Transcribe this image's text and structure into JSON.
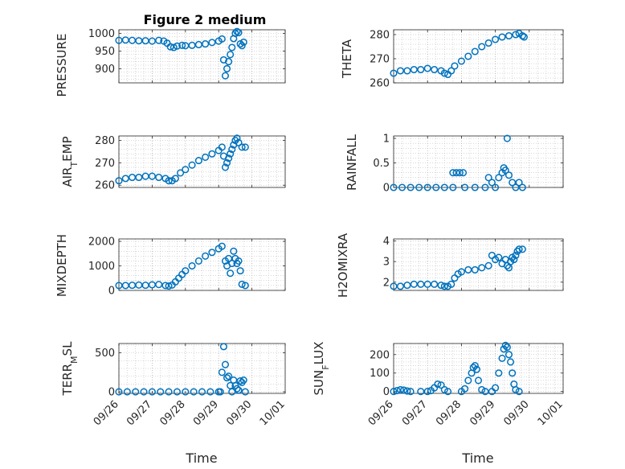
{
  "figure": {
    "title": "Figure 2 medium",
    "xlabel": "Time",
    "x_tick_labels": [
      "09/26",
      "09/27",
      "09/28",
      "09/29",
      "09/30",
      "10/01"
    ],
    "marker_color": "#0072BD",
    "axis_color": "#262626",
    "grid_color": "#b0b0b0"
  },
  "chart_data": [
    {
      "type": "scatter",
      "ylabel": "PRESSURE",
      "ylim": [
        860,
        1010
      ],
      "yticks": [
        900,
        950,
        1000
      ],
      "ytick_labels": [
        "900",
        "950",
        "1000"
      ],
      "xlim": [
        0,
        5
      ],
      "grid": true,
      "points": [
        [
          0,
          980
        ],
        [
          0.2,
          981
        ],
        [
          0.4,
          980
        ],
        [
          0.6,
          979
        ],
        [
          0.8,
          979
        ],
        [
          1.0,
          978
        ],
        [
          1.2,
          980
        ],
        [
          1.35,
          978
        ],
        [
          1.45,
          972
        ],
        [
          1.55,
          962
        ],
        [
          1.65,
          960
        ],
        [
          1.75,
          964
        ],
        [
          1.9,
          966
        ],
        [
          2.0,
          965
        ],
        [
          2.2,
          966
        ],
        [
          2.4,
          968
        ],
        [
          2.6,
          970
        ],
        [
          2.8,
          974
        ],
        [
          3.0,
          978
        ],
        [
          3.1,
          984
        ],
        [
          3.15,
          925
        ],
        [
          3.2,
          880
        ],
        [
          3.25,
          900
        ],
        [
          3.3,
          920
        ],
        [
          3.35,
          940
        ],
        [
          3.4,
          960
        ],
        [
          3.45,
          985
        ],
        [
          3.5,
          1000
        ],
        [
          3.55,
          1005
        ],
        [
          3.6,
          1002
        ],
        [
          3.65,
          970
        ],
        [
          3.7,
          965
        ],
        [
          3.75,
          975
        ]
      ]
    },
    {
      "type": "scatter",
      "ylabel": "THETA",
      "ylim": [
        260,
        282
      ],
      "yticks": [
        260,
        270,
        280
      ],
      "ytick_labels": [
        "260",
        "270",
        "280"
      ],
      "xlim": [
        0,
        5
      ],
      "grid": true,
      "points": [
        [
          0,
          264
        ],
        [
          0.2,
          265
        ],
        [
          0.4,
          265
        ],
        [
          0.6,
          265.5
        ],
        [
          0.8,
          265.5
        ],
        [
          1.0,
          266
        ],
        [
          1.2,
          265.5
        ],
        [
          1.4,
          265
        ],
        [
          1.5,
          264
        ],
        [
          1.6,
          263.5
        ],
        [
          1.7,
          265
        ],
        [
          1.8,
          267
        ],
        [
          2.0,
          269
        ],
        [
          2.2,
          271
        ],
        [
          2.4,
          273
        ],
        [
          2.6,
          275
        ],
        [
          2.8,
          276.5
        ],
        [
          3.0,
          278
        ],
        [
          3.2,
          279
        ],
        [
          3.4,
          279.5
        ],
        [
          3.6,
          280
        ],
        [
          3.7,
          280.5
        ],
        [
          3.8,
          279.5
        ],
        [
          3.85,
          279
        ]
      ]
    },
    {
      "type": "scatter",
      "ylabel": "AIR_TEMP",
      "ylim": [
        259,
        282
      ],
      "yticks": [
        260,
        270,
        280
      ],
      "ytick_labels": [
        "260",
        "270",
        "280"
      ],
      "xlim": [
        0,
        5
      ],
      "grid": true,
      "points": [
        [
          0,
          262
        ],
        [
          0.2,
          263
        ],
        [
          0.4,
          263.5
        ],
        [
          0.6,
          263.5
        ],
        [
          0.8,
          264
        ],
        [
          1.0,
          264
        ],
        [
          1.2,
          263.5
        ],
        [
          1.4,
          263
        ],
        [
          1.5,
          262
        ],
        [
          1.6,
          262
        ],
        [
          1.7,
          263
        ],
        [
          1.85,
          265.5
        ],
        [
          2.0,
          267
        ],
        [
          2.2,
          269
        ],
        [
          2.4,
          271
        ],
        [
          2.6,
          272.5
        ],
        [
          2.8,
          274
        ],
        [
          3.0,
          275.5
        ],
        [
          3.1,
          277
        ],
        [
          3.15,
          273
        ],
        [
          3.2,
          268
        ],
        [
          3.25,
          270
        ],
        [
          3.3,
          272
        ],
        [
          3.35,
          274
        ],
        [
          3.4,
          276
        ],
        [
          3.45,
          278
        ],
        [
          3.5,
          280
        ],
        [
          3.55,
          281
        ],
        [
          3.6,
          279
        ],
        [
          3.7,
          277
        ],
        [
          3.8,
          277
        ]
      ]
    },
    {
      "type": "scatter",
      "ylabel": "RAINFALL",
      "ylim": [
        0,
        1.05
      ],
      "yticks": [
        0,
        0.5,
        1
      ],
      "ytick_labels": [
        "0",
        "0.5",
        "1"
      ],
      "xlim": [
        0,
        5
      ],
      "grid": true,
      "points": [
        [
          0,
          0
        ],
        [
          0.25,
          0
        ],
        [
          0.5,
          0
        ],
        [
          0.75,
          0
        ],
        [
          1.0,
          0
        ],
        [
          1.25,
          0
        ],
        [
          1.5,
          0
        ],
        [
          1.75,
          0
        ],
        [
          1.75,
          0.3
        ],
        [
          1.85,
          0.3
        ],
        [
          1.95,
          0.3
        ],
        [
          2.05,
          0.3
        ],
        [
          2.1,
          0
        ],
        [
          2.4,
          0
        ],
        [
          2.7,
          0
        ],
        [
          2.8,
          0.2
        ],
        [
          2.9,
          0.1
        ],
        [
          3.0,
          0
        ],
        [
          3.1,
          0.2
        ],
        [
          3.2,
          0.3
        ],
        [
          3.25,
          0.4
        ],
        [
          3.3,
          0.35
        ],
        [
          3.35,
          1.0
        ],
        [
          3.4,
          0.25
        ],
        [
          3.5,
          0.1
        ],
        [
          3.6,
          0
        ],
        [
          3.7,
          0.1
        ],
        [
          3.8,
          0
        ]
      ]
    },
    {
      "type": "scatter",
      "ylabel": "MIXDEPTH",
      "ylim": [
        0,
        2100
      ],
      "yticks": [
        0,
        1000,
        2000
      ],
      "ytick_labels": [
        "0",
        "1000",
        "2000"
      ],
      "xlim": [
        0,
        5
      ],
      "grid": true,
      "points": [
        [
          0,
          200
        ],
        [
          0.2,
          200
        ],
        [
          0.4,
          210
        ],
        [
          0.6,
          220
        ],
        [
          0.8,
          210
        ],
        [
          1.0,
          230
        ],
        [
          1.2,
          240
        ],
        [
          1.4,
          200
        ],
        [
          1.5,
          180
        ],
        [
          1.6,
          220
        ],
        [
          1.7,
          350
        ],
        [
          1.8,
          500
        ],
        [
          1.9,
          650
        ],
        [
          2.0,
          800
        ],
        [
          2.2,
          1000
        ],
        [
          2.4,
          1200
        ],
        [
          2.6,
          1400
        ],
        [
          2.8,
          1550
        ],
        [
          3.0,
          1700
        ],
        [
          3.1,
          1800
        ],
        [
          3.2,
          1200
        ],
        [
          3.25,
          1000
        ],
        [
          3.3,
          1300
        ],
        [
          3.35,
          700
        ],
        [
          3.4,
          1100
        ],
        [
          3.45,
          1600
        ],
        [
          3.5,
          1300
        ],
        [
          3.55,
          1100
        ],
        [
          3.6,
          1200
        ],
        [
          3.65,
          800
        ],
        [
          3.7,
          250
        ],
        [
          3.8,
          200
        ]
      ]
    },
    {
      "type": "scatter",
      "ylabel": "H2OMIXRA",
      "ylim": [
        1.6,
        4.1
      ],
      "yticks": [
        2,
        3,
        4
      ],
      "ytick_labels": [
        "2",
        "3",
        "4"
      ],
      "xlim": [
        0,
        5
      ],
      "grid": true,
      "points": [
        [
          0,
          1.8
        ],
        [
          0.2,
          1.8
        ],
        [
          0.4,
          1.85
        ],
        [
          0.6,
          1.9
        ],
        [
          0.8,
          1.9
        ],
        [
          1.0,
          1.9
        ],
        [
          1.2,
          1.9
        ],
        [
          1.4,
          1.85
        ],
        [
          1.5,
          1.8
        ],
        [
          1.6,
          1.8
        ],
        [
          1.7,
          1.9
        ],
        [
          1.8,
          2.2
        ],
        [
          1.9,
          2.4
        ],
        [
          2.0,
          2.5
        ],
        [
          2.2,
          2.6
        ],
        [
          2.4,
          2.6
        ],
        [
          2.6,
          2.7
        ],
        [
          2.8,
          2.8
        ],
        [
          2.9,
          3.3
        ],
        [
          3.0,
          3.1
        ],
        [
          3.1,
          3.2
        ],
        [
          3.2,
          2.9
        ],
        [
          3.3,
          3.1
        ],
        [
          3.35,
          2.8
        ],
        [
          3.4,
          2.7
        ],
        [
          3.45,
          3.0
        ],
        [
          3.5,
          3.2
        ],
        [
          3.55,
          3.1
        ],
        [
          3.6,
          3.3
        ],
        [
          3.65,
          3.5
        ],
        [
          3.7,
          3.6
        ],
        [
          3.8,
          3.6
        ]
      ]
    },
    {
      "type": "scatter",
      "ylabel": "TERR_MSL",
      "ylim": [
        -20,
        620
      ],
      "yticks": [
        0,
        500
      ],
      "ytick_labels": [
        "0",
        "500"
      ],
      "xlim": [
        0,
        5
      ],
      "grid": true,
      "points": [
        [
          0,
          0
        ],
        [
          0.25,
          0
        ],
        [
          0.5,
          0
        ],
        [
          0.75,
          0
        ],
        [
          1.0,
          0
        ],
        [
          1.25,
          0
        ],
        [
          1.5,
          0
        ],
        [
          1.75,
          0
        ],
        [
          2.0,
          0
        ],
        [
          2.25,
          0
        ],
        [
          2.5,
          0
        ],
        [
          2.75,
          0
        ],
        [
          3.0,
          0
        ],
        [
          3.05,
          0
        ],
        [
          3.1,
          250
        ],
        [
          3.15,
          580
        ],
        [
          3.2,
          350
        ],
        [
          3.25,
          180
        ],
        [
          3.3,
          200
        ],
        [
          3.35,
          80
        ],
        [
          3.4,
          0
        ],
        [
          3.45,
          150
        ],
        [
          3.5,
          80
        ],
        [
          3.55,
          40
        ],
        [
          3.6,
          20
        ],
        [
          3.65,
          140
        ],
        [
          3.7,
          120
        ],
        [
          3.75,
          150
        ],
        [
          3.8,
          0
        ]
      ]
    },
    {
      "type": "scatter",
      "ylabel": "SUN_FLUX",
      "ylim": [
        -10,
        260
      ],
      "yticks": [
        0,
        100,
        200
      ],
      "ytick_labels": [
        "0",
        "100",
        "200"
      ],
      "xlim": [
        0,
        5
      ],
      "grid": true,
      "points": [
        [
          0,
          0
        ],
        [
          0.1,
          5
        ],
        [
          0.2,
          10
        ],
        [
          0.3,
          8
        ],
        [
          0.4,
          3
        ],
        [
          0.5,
          0
        ],
        [
          0.8,
          0
        ],
        [
          1.0,
          0
        ],
        [
          1.1,
          5
        ],
        [
          1.2,
          20
        ],
        [
          1.3,
          40
        ],
        [
          1.4,
          35
        ],
        [
          1.5,
          10
        ],
        [
          1.6,
          0
        ],
        [
          2.0,
          0
        ],
        [
          2.1,
          15
        ],
        [
          2.2,
          60
        ],
        [
          2.3,
          100
        ],
        [
          2.35,
          130
        ],
        [
          2.4,
          140
        ],
        [
          2.45,
          120
        ],
        [
          2.5,
          60
        ],
        [
          2.6,
          10
        ],
        [
          2.7,
          0
        ],
        [
          2.9,
          0
        ],
        [
          3.0,
          20
        ],
        [
          3.1,
          100
        ],
        [
          3.2,
          180
        ],
        [
          3.25,
          230
        ],
        [
          3.3,
          250
        ],
        [
          3.35,
          240
        ],
        [
          3.4,
          200
        ],
        [
          3.45,
          160
        ],
        [
          3.5,
          100
        ],
        [
          3.55,
          40
        ],
        [
          3.6,
          10
        ],
        [
          3.7,
          0
        ]
      ]
    }
  ]
}
